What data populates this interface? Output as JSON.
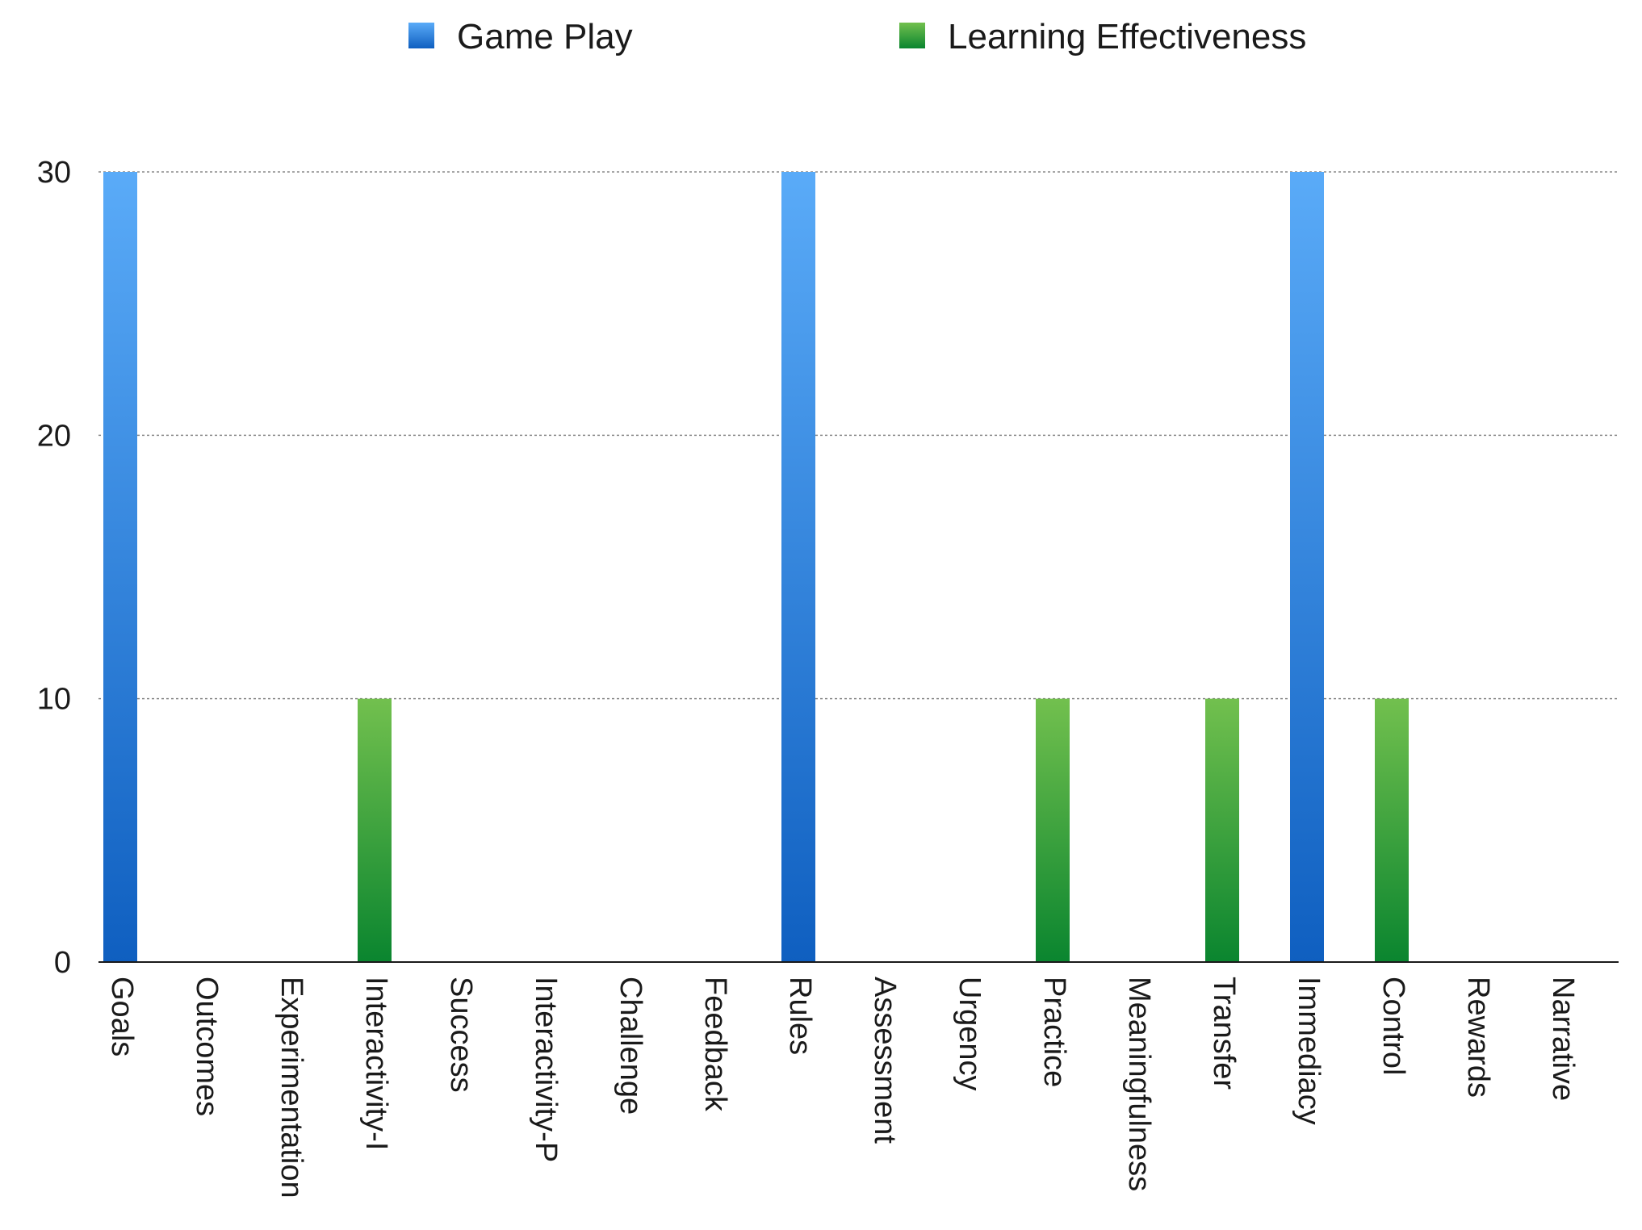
{
  "chart_data": {
    "type": "bar",
    "categories": [
      "Goals",
      "Outcomes",
      "Experimentation",
      "Interactivity-I",
      "Success",
      "Interactivity-P",
      "Challenge",
      "Feedback",
      "Rules",
      "Assessment",
      "Urgency",
      "Practice",
      "Meaningfulness",
      "Transfer",
      "Immediacy",
      "Control",
      "Rewards",
      "Narrative"
    ],
    "series": [
      {
        "name": "Game Play",
        "values": [
          30,
          0,
          0,
          0,
          0,
          0,
          0,
          0,
          30,
          0,
          0,
          0,
          0,
          0,
          30,
          0,
          0,
          0
        ],
        "color_top": "#5aabf8",
        "color_bottom": "#0f5fc0"
      },
      {
        "name": "Learning Effectiveness",
        "values": [
          0,
          0,
          0,
          10,
          0,
          0,
          0,
          0,
          0,
          0,
          0,
          10,
          0,
          10,
          0,
          10,
          0,
          0
        ],
        "color_top": "#72c04e",
        "color_bottom": "#0a852f"
      }
    ],
    "ylim": [
      0,
      30
    ],
    "yticks": [
      0,
      10,
      20,
      30
    ],
    "grid": true,
    "legend_position": "top"
  }
}
